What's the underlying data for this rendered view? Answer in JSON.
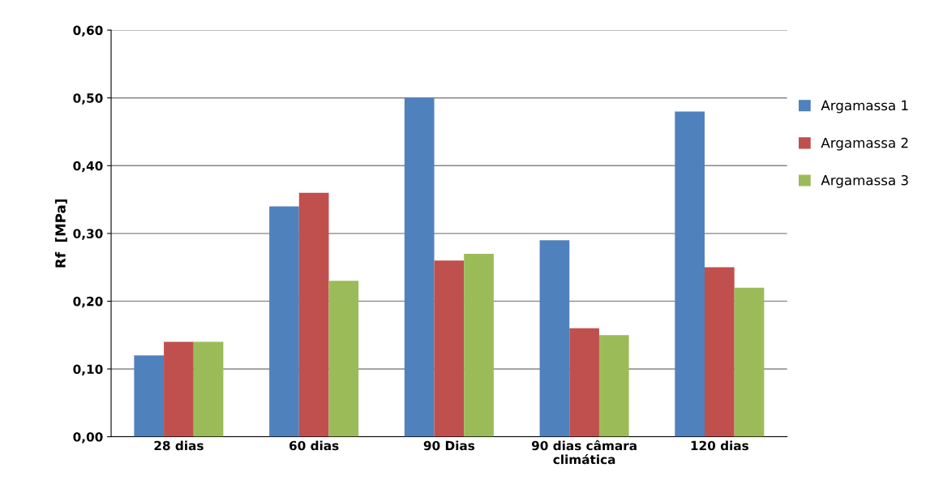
{
  "chart_data": {
    "type": "bar",
    "ylabel": "Rf  [MPa]",
    "categories": [
      "28 dias",
      "60 dias",
      "90 Dias",
      "90 dias câmara\nclimática",
      "120 dias"
    ],
    "series": [
      {
        "name": "Argamassa 1",
        "color": "#4f81bd",
        "values": [
          0.12,
          0.34,
          0.5,
          0.29,
          0.48
        ]
      },
      {
        "name": "Argamassa 2",
        "color": "#c0504d",
        "values": [
          0.14,
          0.36,
          0.26,
          0.16,
          0.25
        ]
      },
      {
        "name": "Argamassa 3",
        "color": "#9bbb59",
        "values": [
          0.14,
          0.23,
          0.27,
          0.15,
          0.22
        ]
      }
    ],
    "ylim": [
      0,
      0.6
    ],
    "yticks": [
      {
        "value": 0,
        "label": "0,00"
      },
      {
        "value": 0.1,
        "label": "0,10"
      },
      {
        "value": 0.2,
        "label": "0,20"
      },
      {
        "value": 0.3,
        "label": "0,30"
      },
      {
        "value": 0.4,
        "label": "0,40"
      },
      {
        "value": 0.5,
        "label": "0,50"
      },
      {
        "value": 0.6,
        "label": "0,60"
      }
    ],
    "grid": "y",
    "legend": "right"
  }
}
